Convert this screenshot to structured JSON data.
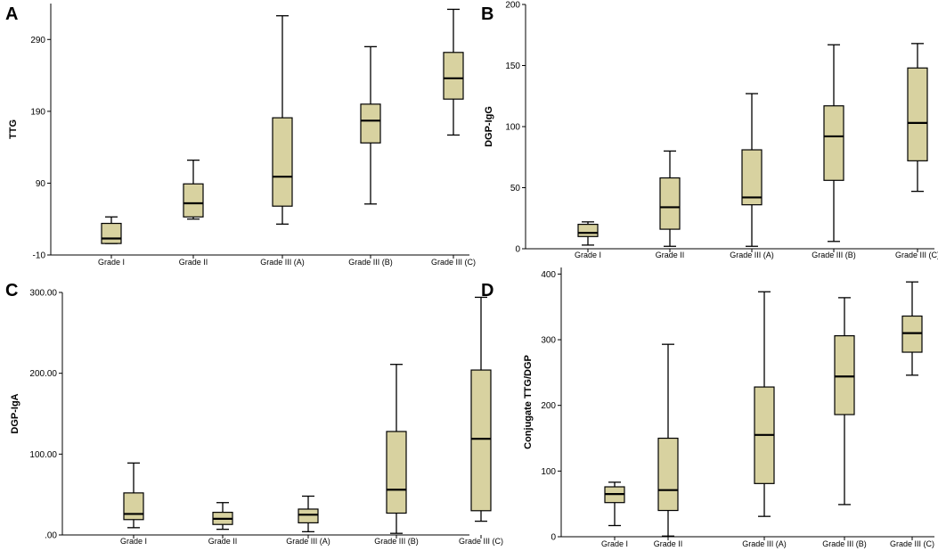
{
  "chart_data": [
    {
      "panel": "A",
      "type": "box",
      "ylabel": "TTG",
      "ylim": [
        -10,
        340
      ],
      "yticks": [
        -10,
        90,
        190,
        290
      ],
      "ytick_labels": [
        "-10",
        "90",
        "190",
        "290"
      ],
      "categories": [
        "Grade I",
        "Grade II",
        "Grade III (A)",
        "Grade III (B)",
        "Grade III (C)"
      ],
      "boxes": [
        {
          "min": 6,
          "q1": 6,
          "median": 13,
          "q3": 34,
          "max": 43
        },
        {
          "min": 40,
          "q1": 43,
          "median": 62,
          "q3": 89,
          "max": 122
        },
        {
          "min": 33,
          "q1": 58,
          "median": 99,
          "q3": 181,
          "max": 323
        },
        {
          "min": 61,
          "q1": 146,
          "median": 177,
          "q3": 200,
          "max": 280
        },
        {
          "min": 157,
          "q1": 207,
          "median": 236,
          "q3": 272,
          "max": 332
        }
      ]
    },
    {
      "panel": "B",
      "type": "box",
      "ylabel": "DGP-IgG",
      "ylim": [
        0,
        200
      ],
      "yticks": [
        0,
        50,
        100,
        150,
        200
      ],
      "ytick_labels": [
        "0",
        "50",
        "100",
        "150",
        "200"
      ],
      "categories": [
        "Grade I",
        "Grade II",
        "Grade III (A)",
        "Grade III (B)",
        "Grade III (C)"
      ],
      "boxes": [
        {
          "min": 3,
          "q1": 10,
          "median": 13,
          "q3": 20,
          "max": 22
        },
        {
          "min": 2,
          "q1": 16,
          "median": 34,
          "q3": 58,
          "max": 80
        },
        {
          "min": 2,
          "q1": 36,
          "median": 42,
          "q3": 81,
          "max": 127
        },
        {
          "min": 6,
          "q1": 56,
          "median": 92,
          "q3": 117,
          "max": 167
        },
        {
          "min": 47,
          "q1": 72,
          "median": 103,
          "q3": 148,
          "max": 168
        }
      ]
    },
    {
      "panel": "C",
      "type": "box",
      "ylabel": "DGP-IgA",
      "ylim": [
        0,
        300
      ],
      "yticks": [
        0,
        100,
        200,
        300
      ],
      "ytick_labels": [
        ".00",
        "100.00",
        "200.00",
        "300.00"
      ],
      "categories": [
        "Grade I",
        "Grade II",
        "Grade III (A)",
        "Grade III (B)",
        "Grade III (C)"
      ],
      "boxes": [
        {
          "min": 9,
          "q1": 19,
          "median": 26,
          "q3": 52,
          "max": 89
        },
        {
          "min": 7,
          "q1": 13,
          "median": 20,
          "q3": 28,
          "max": 40
        },
        {
          "min": 4,
          "q1": 15,
          "median": 25,
          "q3": 32,
          "max": 48
        },
        {
          "min": 2,
          "q1": 27,
          "median": 56,
          "q3": 128,
          "max": 211
        },
        {
          "min": 17,
          "q1": 30,
          "median": 119,
          "q3": 204,
          "max": 294
        }
      ]
    },
    {
      "panel": "D",
      "type": "box",
      "ylabel": "Conjugate TTG/DGP",
      "ylim": [
        0,
        410
      ],
      "yticks": [
        0,
        100,
        200,
        300,
        400
      ],
      "ytick_labels": [
        "0",
        "100",
        "200",
        "300",
        "400"
      ],
      "categories": [
        "Grade I",
        "Grade II",
        "Grade III (A)",
        "Grade III (B)",
        "Grade III (C)"
      ],
      "boxes": [
        {
          "min": 17,
          "q1": 52,
          "median": 65,
          "q3": 76,
          "max": 83
        },
        {
          "min": 1,
          "q1": 40,
          "median": 71,
          "q3": 150,
          "max": 293
        },
        {
          "min": 31,
          "q1": 81,
          "median": 155,
          "q3": 228,
          "max": 373
        },
        {
          "min": 49,
          "q1": 186,
          "median": 244,
          "q3": 306,
          "max": 364
        },
        {
          "min": 246,
          "q1": 281,
          "median": 310,
          "q3": 336,
          "max": 388
        }
      ]
    }
  ]
}
